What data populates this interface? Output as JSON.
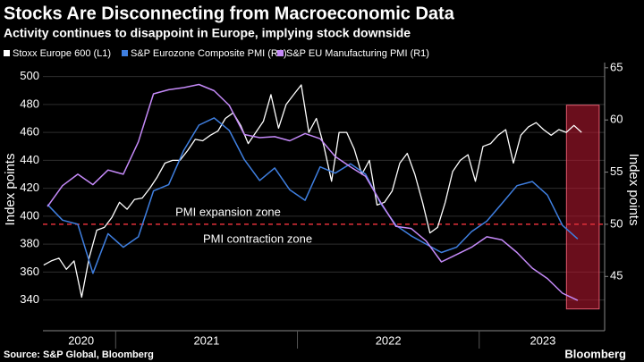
{
  "chart_data": {
    "type": "line",
    "title": "Stocks Are Disconnecting from Macroeconomic Data",
    "subtitle": "Activity continues to disappoint in Europe, implying stock downside",
    "source": "Source: S&P Global, Bloomberg",
    "brand": "Bloomberg",
    "ylabel": "Index points",
    "y2label": "Index points",
    "xlim": [
      2020.6,
      2023.69
    ],
    "ylim": [
      318,
      510
    ],
    "yticks": [
      340,
      360,
      380,
      400,
      420,
      440,
      460,
      480,
      500
    ],
    "y2lim": [
      39.8,
      65.5
    ],
    "y2ticks": [
      45,
      50,
      55,
      60,
      65
    ],
    "xticks": [
      {
        "value": 2020.81,
        "label": "2020"
      },
      {
        "value": 2021.5,
        "label": "2021"
      },
      {
        "value": 2022.5,
        "label": "2022"
      },
      {
        "value": 2023.35,
        "label": "2023"
      }
    ],
    "year_starts": [
      2021,
      2022,
      2023
    ],
    "grid": true,
    "legend": "top-left",
    "reference_line": {
      "value": 50,
      "axis": "y2",
      "color": "#e0303a"
    },
    "highlight": {
      "xlim": [
        2023.48,
        2023.66
      ],
      "ylim": [
        333.6,
        479.5
      ],
      "color": "#b0182e"
    },
    "annotations": [
      {
        "text": "PMI expansion zone",
        "color": "#a7d98a"
      },
      {
        "text": "PMI contraction zone",
        "color": "#e8405a"
      }
    ],
    "series": [
      {
        "name": "Stoxx Europe 600 (L1)",
        "color": "#ffffff",
        "axis": "y",
        "x": [
          2020.604,
          2020.646,
          2020.688,
          2020.729,
          2020.771,
          2020.813,
          2020.854,
          2020.896,
          2020.938,
          2020.979,
          2021.021,
          2021.063,
          2021.104,
          2021.146,
          2021.188,
          2021.229,
          2021.271,
          2021.313,
          2021.354,
          2021.396,
          2021.438,
          2021.479,
          2021.521,
          2021.563,
          2021.604,
          2021.646,
          2021.688,
          2021.729,
          2021.771,
          2021.813,
          2021.854,
          2021.896,
          2021.938,
          2021.979,
          2022.021,
          2022.063,
          2022.104,
          2022.146,
          2022.188,
          2022.229,
          2022.271,
          2022.313,
          2022.354,
          2022.396,
          2022.438,
          2022.479,
          2022.521,
          2022.563,
          2022.604,
          2022.646,
          2022.688,
          2022.729,
          2022.771,
          2022.813,
          2022.854,
          2022.896,
          2022.938,
          2022.979,
          2023.021,
          2023.063,
          2023.104,
          2023.146,
          2023.188,
          2023.229,
          2023.271,
          2023.313,
          2023.354,
          2023.396,
          2023.438,
          2023.479,
          2023.521,
          2023.563
        ],
        "values": [
          365,
          368,
          370,
          362,
          368,
          342,
          370,
          390,
          392,
          399,
          410,
          405,
          412,
          413,
          420,
          428,
          438,
          440,
          440,
          447,
          455,
          454,
          458,
          461,
          470,
          474,
          465,
          452,
          460,
          468,
          487,
          463,
          480,
          487,
          494,
          460,
          470,
          450,
          425,
          460,
          460,
          448,
          430,
          440,
          408,
          410,
          418,
          438,
          445,
          430,
          410,
          388,
          392,
          410,
          432,
          440,
          444,
          425,
          450,
          452,
          458,
          462,
          438,
          458,
          464,
          467,
          462,
          458,
          462,
          460,
          465,
          460
        ]
      },
      {
        "name": "S&P Eurozone Composite PMI (R1)",
        "color": "#3f7fe0",
        "axis": "y2",
        "x": [
          2020.625,
          2020.708,
          2020.792,
          2020.875,
          2020.958,
          2021.042,
          2021.125,
          2021.208,
          2021.292,
          2021.375,
          2021.458,
          2021.542,
          2021.625,
          2021.708,
          2021.792,
          2021.875,
          2021.958,
          2022.042,
          2022.125,
          2022.208,
          2022.292,
          2022.375,
          2022.458,
          2022.542,
          2022.625,
          2022.708,
          2022.792,
          2022.875,
          2022.958,
          2023.042,
          2023.125,
          2023.208,
          2023.292,
          2023.375,
          2023.458,
          2023.542
        ],
        "values": [
          51.9,
          50.4,
          50.0,
          45.3,
          49.1,
          47.8,
          48.8,
          53.2,
          53.8,
          57.1,
          59.5,
          60.2,
          59.0,
          56.2,
          54.2,
          55.4,
          53.3,
          52.3,
          55.5,
          54.9,
          55.8,
          54.8,
          52.0,
          49.9,
          48.9,
          48.1,
          47.3,
          47.8,
          49.3,
          50.3,
          52.0,
          53.7,
          54.1,
          52.8,
          49.9,
          48.6
        ]
      },
      {
        "name": "S&P EU Manufacturing PMI (R1)",
        "color": "#c58af9",
        "axis": "y2",
        "x": [
          2020.625,
          2020.708,
          2020.792,
          2020.875,
          2020.958,
          2021.042,
          2021.125,
          2021.208,
          2021.292,
          2021.375,
          2021.458,
          2021.542,
          2021.625,
          2021.708,
          2021.792,
          2021.875,
          2021.958,
          2022.042,
          2022.125,
          2022.208,
          2022.292,
          2022.375,
          2022.458,
          2022.542,
          2022.625,
          2022.708,
          2022.792,
          2022.875,
          2022.958,
          2023.042,
          2023.125,
          2023.208,
          2023.292,
          2023.375,
          2023.458,
          2023.542
        ],
        "values": [
          51.7,
          53.7,
          54.8,
          53.8,
          55.2,
          54.8,
          57.9,
          62.5,
          62.9,
          63.1,
          63.4,
          62.8,
          61.4,
          58.6,
          58.3,
          58.4,
          58.0,
          58.7,
          58.2,
          56.5,
          55.5,
          54.6,
          52.1,
          49.8,
          49.6,
          48.4,
          46.4,
          47.1,
          47.8,
          48.8,
          48.5,
          47.3,
          45.8,
          44.8,
          43.4,
          42.7
        ]
      }
    ]
  }
}
